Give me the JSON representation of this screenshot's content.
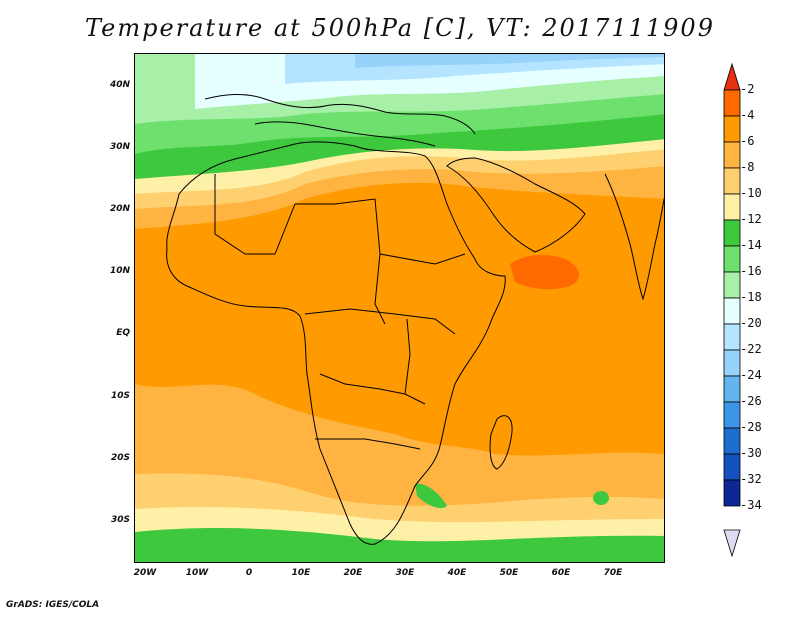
{
  "title": "Temperature at 500hPa [C], VT: 2017111909",
  "credit": "GrADS: IGES/COLA",
  "axes": {
    "lat_labels": [
      "40N",
      "30N",
      "20N",
      "10N",
      "EQ",
      "10S",
      "20S",
      "30S"
    ],
    "lon_labels": [
      "20W",
      "10W",
      "0",
      "10E",
      "20E",
      "30E",
      "40E",
      "50E",
      "60E",
      "70E"
    ],
    "lat_range": [
      -36,
      45
    ],
    "lon_range": [
      -23,
      79
    ]
  },
  "colorbar": {
    "labels": [
      "-2",
      "-4",
      "-6",
      "-8",
      "-10",
      "-12",
      "-14",
      "-16",
      "-18",
      "-20",
      "-22",
      "-24",
      "-26",
      "-28",
      "-30",
      "-32",
      "-34"
    ],
    "colors": [
      "#e63210",
      "#ff6a00",
      "#ff9a00",
      "#ffb340",
      "#ffd070",
      "#fff0a8",
      "#3ec83e",
      "#6ee06e",
      "#a8f0a8",
      "#e6ffff",
      "#b4e4ff",
      "#96d2fa",
      "#64b4f0",
      "#3c96e6",
      "#1e6ed2",
      "#1450be",
      "#0c2896",
      "#dcdcf5"
    ]
  },
  "temperature_regions": [
    {
      "label": "-16"
    },
    {
      "label": "-18"
    },
    {
      "label": "-20"
    },
    {
      "label": "-22"
    },
    {
      "label": "-14"
    },
    {
      "label": "-12"
    },
    {
      "label": "-10"
    },
    {
      "label": "-8"
    },
    {
      "label": "-6"
    },
    {
      "label": "-4"
    }
  ]
}
